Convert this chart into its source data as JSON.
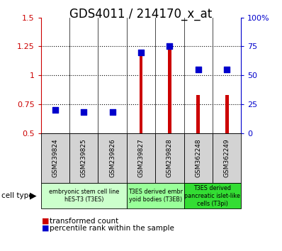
{
  "title": "GDS4011 / 214170_x_at",
  "samples": [
    "GSM239824",
    "GSM239825",
    "GSM239826",
    "GSM239827",
    "GSM239828",
    "GSM362248",
    "GSM362249"
  ],
  "transformed_count": [
    0.5,
    0.5,
    0.5,
    1.18,
    1.25,
    0.83,
    0.83
  ],
  "percentile_rank": [
    20,
    18,
    18,
    70,
    75,
    55,
    55
  ],
  "ylim_left": [
    0.5,
    1.5
  ],
  "ylim_right": [
    0,
    100
  ],
  "yticks_left": [
    0.5,
    0.75,
    1.0,
    1.25,
    1.5
  ],
  "yticks_right": [
    0,
    25,
    50,
    75,
    100
  ],
  "ytick_labels_left": [
    "0.5",
    "0.75",
    "1",
    "1.25",
    "1.5"
  ],
  "ytick_labels_right": [
    "0",
    "25",
    "50",
    "75",
    "100%"
  ],
  "bar_color": "#cc0000",
  "dot_color": "#0000cc",
  "cell_groups": [
    {
      "label": "embryonic stem cell line\nhES-T3 (T3ES)",
      "start": 0,
      "end": 3,
      "color": "#ccffcc"
    },
    {
      "label": "T3ES derived embr\nyoid bodies (T3EB)",
      "start": 3,
      "end": 5,
      "color": "#99ff99"
    },
    {
      "label": "T3ES derived\npancreatic islet-like\ncells (T3pi)",
      "start": 5,
      "end": 7,
      "color": "#33dd33"
    }
  ],
  "legend_items": [
    {
      "label": "transformed count",
      "color": "#cc0000"
    },
    {
      "label": "percentile rank within the sample",
      "color": "#0000cc"
    }
  ],
  "tick_label_color_left": "#cc0000",
  "tick_label_color_right": "#0000cc",
  "title_fontsize": 12,
  "bar_width": 0.12,
  "dot_size": 30,
  "background_color": "#ffffff",
  "sample_bg_color": "#d3d3d3"
}
